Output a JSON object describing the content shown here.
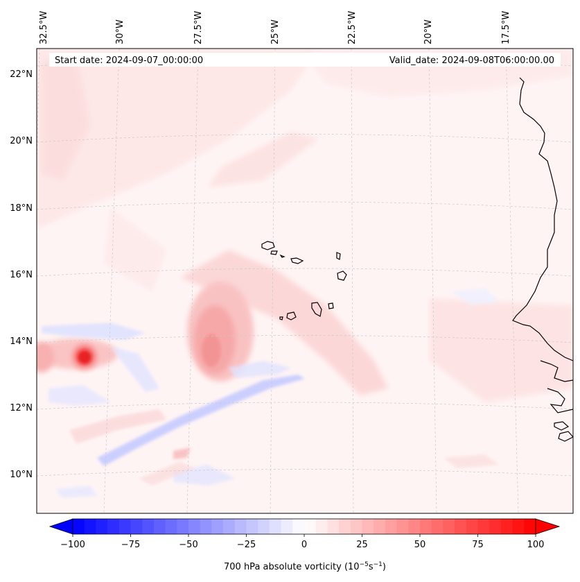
{
  "header": {
    "start_date": "Start date: 2024-09-07_00:00:00",
    "valid_date": "Valid_date: 2024-09-08T06:00:00.00"
  },
  "axes": {
    "lon_labels": [
      "32.5°W",
      "30°W",
      "27.5°W",
      "25°W",
      "22.5°W",
      "20°W",
      "17.5°W"
    ],
    "lat_labels": [
      "22°N",
      "20°N",
      "18°N",
      "16°N",
      "14°N",
      "12°N",
      "10°N"
    ]
  },
  "colorbar": {
    "ticks": [
      "−100",
      "−75",
      "−50",
      "−25",
      "0",
      "25",
      "50",
      "75",
      "100"
    ],
    "label_main": "700 hPa absolute vorticity (10",
    "label_exp1": "−5",
    "label_mid": "s",
    "label_exp2": "−1",
    "label_close": ")",
    "min": -100,
    "max": 100,
    "low_color": "#0000ff",
    "mid_color": "#ffffff",
    "high_color": "#ff0000"
  },
  "colors": {
    "background_tint": "#fff3f3",
    "coastline": "#000000",
    "gridline": "#c8c8c8"
  }
}
